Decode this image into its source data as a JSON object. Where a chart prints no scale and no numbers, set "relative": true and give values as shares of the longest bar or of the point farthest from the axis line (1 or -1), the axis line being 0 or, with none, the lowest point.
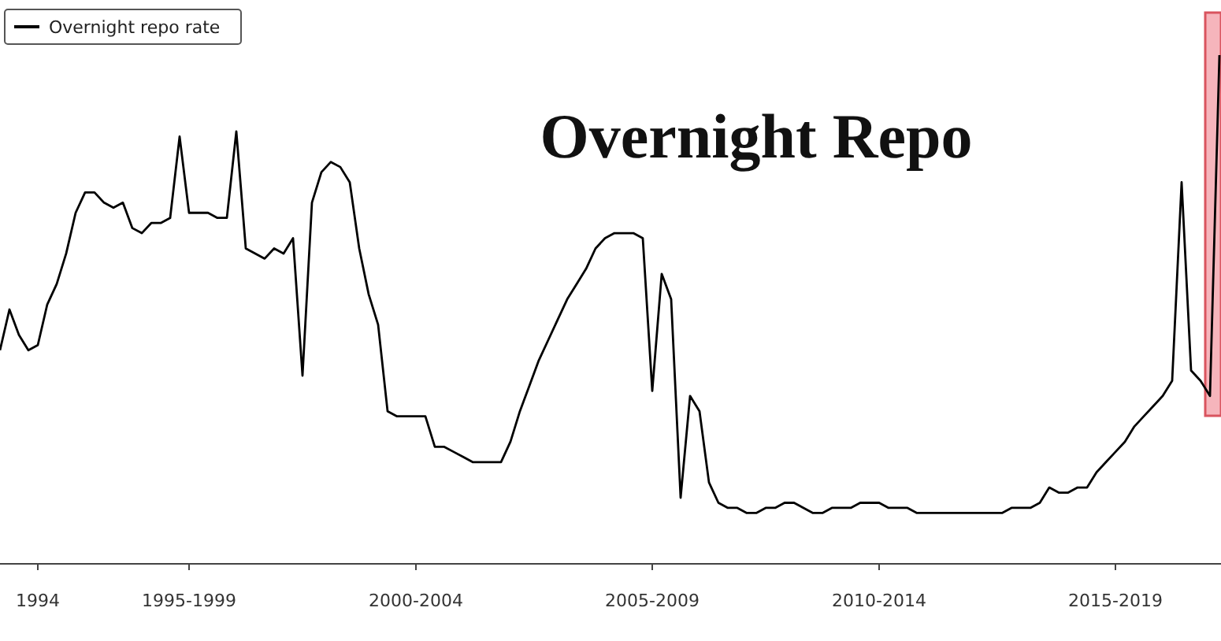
{
  "chart_data": {
    "type": "line",
    "title": "Overnight Repo",
    "relative": true,
    "legend": "top left",
    "categories": [
      null,
      null,
      null,
      null,
      "1994",
      null,
      null,
      null,
      null,
      null,
      null,
      null,
      null,
      null,
      null,
      null,
      null,
      null,
      null,
      null,
      "1995-1999",
      null,
      null,
      null,
      null,
      null,
      null,
      null,
      null,
      null,
      null,
      null,
      null,
      null,
      null,
      null,
      null,
      null,
      null,
      null,
      null,
      null,
      null,
      null,
      "2000-2004",
      null,
      null,
      null,
      null,
      null,
      null,
      null,
      null,
      null,
      null,
      null,
      null,
      null,
      null,
      null,
      null,
      null,
      null,
      null,
      null,
      null,
      null,
      null,
      null,
      "2005-2009",
      null,
      null,
      null,
      null,
      null,
      null,
      null,
      null,
      null,
      null,
      null,
      null,
      null,
      null,
      null,
      null,
      null,
      null,
      null,
      null,
      null,
      null,
      null,
      "2010-2014",
      null,
      null,
      null,
      null,
      null,
      null,
      null,
      null,
      null,
      null,
      null,
      null,
      null,
      null,
      null,
      null,
      null,
      null,
      null,
      null,
      null,
      null,
      null,
      null,
      "2015-2019",
      null,
      null,
      null,
      null,
      null,
      null,
      null,
      null,
      null,
      null,
      null
    ],
    "series": [
      {
        "name": "Overnight repo rate",
        "color": "#000000",
        "values": [
          0.42,
          0.5,
          0.45,
          0.42,
          0.43,
          0.51,
          0.55,
          0.61,
          0.69,
          0.73,
          0.73,
          0.71,
          0.7,
          0.71,
          0.66,
          0.65,
          0.67,
          0.67,
          0.68,
          0.84,
          0.69,
          0.69,
          0.69,
          0.68,
          0.68,
          0.85,
          0.62,
          0.61,
          0.6,
          0.62,
          0.61,
          0.64,
          0.37,
          0.71,
          0.77,
          0.79,
          0.78,
          0.75,
          0.62,
          0.53,
          0.47,
          0.3,
          0.29,
          0.29,
          0.29,
          0.29,
          0.23,
          0.23,
          0.22,
          0.21,
          0.2,
          0.2,
          0.2,
          0.2,
          0.24,
          0.3,
          0.35,
          0.4,
          0.44,
          0.48,
          0.52,
          0.55,
          0.58,
          0.62,
          0.64,
          0.65,
          0.65,
          0.65,
          0.64,
          0.34,
          0.57,
          0.52,
          0.13,
          0.33,
          0.3,
          0.16,
          0.12,
          0.11,
          0.11,
          0.1,
          0.1,
          0.11,
          0.11,
          0.12,
          0.12,
          0.11,
          0.1,
          0.1,
          0.11,
          0.11,
          0.11,
          0.12,
          0.12,
          0.12,
          0.11,
          0.11,
          0.11,
          0.1,
          0.1,
          0.1,
          0.1,
          0.1,
          0.1,
          0.1,
          0.1,
          0.1,
          0.1,
          0.11,
          0.11,
          0.11,
          0.12,
          0.15,
          0.14,
          0.14,
          0.15,
          0.15,
          0.18,
          0.2,
          0.22,
          0.24,
          0.27,
          0.29,
          0.31,
          0.33,
          0.36,
          0.75,
          0.38,
          0.36,
          0.33,
          1
        ]
      }
    ]
  }
}
